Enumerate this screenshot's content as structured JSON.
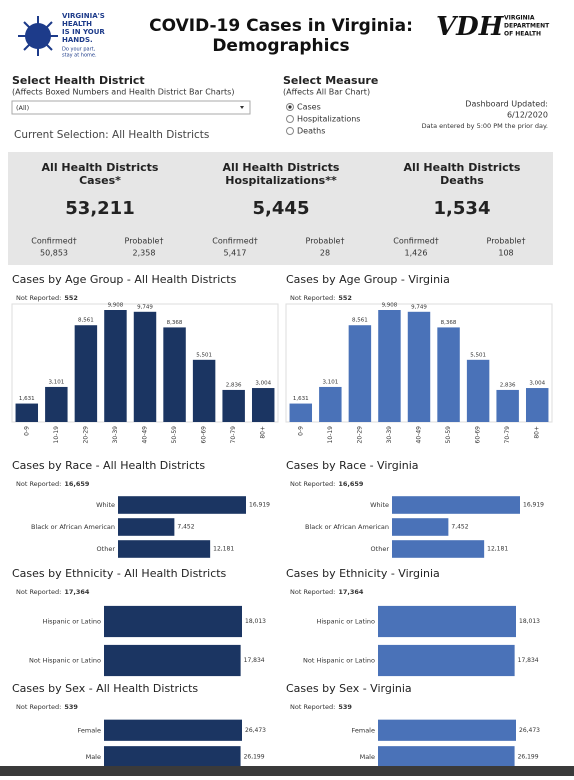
{
  "header": {
    "logo_lines": [
      "VIRGINIA'S",
      "HEALTH",
      "IS IN YOUR",
      "HANDS."
    ],
    "logo_tagline": [
      "Do your part,",
      "stay at home."
    ],
    "title_lines": [
      "COVID-19 Cases in Virginia:",
      "Demographics"
    ],
    "vdh_mark": "VDH",
    "vdh_name": [
      "VIRGINIA",
      "DEPARTMENT",
      "OF HEALTH"
    ]
  },
  "filters": {
    "district_label": "Select Health District",
    "district_note": "(Affects Boxed Numbers and Health District Bar Charts)",
    "district_value": "(All)",
    "current_selection": "Current Selection: All Health Districts",
    "measure_label": "Select Measure",
    "measure_note": "(Affects All Bar Chart)",
    "measure_options": [
      "Cases",
      "Hospitalizations",
      "Deaths"
    ],
    "updated_label": "Dashboard Updated:",
    "updated_date": "6/12/2020",
    "updated_note": "Data entered by 5:00 PM the prior day."
  },
  "summary": [
    {
      "title_lines": [
        "All Health Districts",
        "Cases*"
      ],
      "total": "53,211",
      "confirmed_label": "Confirmed†",
      "confirmed": "50,853",
      "probable_label": "Probable†",
      "probable": "2,358"
    },
    {
      "title_lines": [
        "All Health Districts",
        "Hospitalizations**"
      ],
      "total": "5,445",
      "confirmed_label": "Confirmed†",
      "confirmed": "5,417",
      "probable_label": "Probable†",
      "probable": "28"
    },
    {
      "title_lines": [
        "All Health Districts",
        "Deaths"
      ],
      "total": "1,534",
      "confirmed_label": "Confirmed†",
      "confirmed": "1,426",
      "probable_label": "Probable†",
      "probable": "108"
    }
  ],
  "chart_data": [
    {
      "type": "bar",
      "orientation": "vertical",
      "title": "Cases by Age Group - All Health Districts",
      "note_label": "Not Reported:",
      "note_value": "552",
      "color": "#1b3562",
      "categories": [
        "0-9",
        "10-19",
        "20-29",
        "30-39",
        "40-49",
        "50-59",
        "60-69",
        "70-79",
        "80+"
      ],
      "values": [
        1631,
        3101,
        8561,
        9908,
        9749,
        8368,
        5501,
        2836,
        3004
      ],
      "value_labels": [
        "1,631",
        "3,101",
        "8,561",
        "9,908",
        "9,749",
        "8,368",
        "5,501",
        "2,836",
        "3,004"
      ]
    },
    {
      "type": "bar",
      "orientation": "vertical",
      "title": "Cases by Age Group - Virginia",
      "note_label": "Not Reported:",
      "note_value": "552",
      "color": "#4a72b8",
      "categories": [
        "0-9",
        "10-19",
        "20-29",
        "30-39",
        "40-49",
        "50-59",
        "60-69",
        "70-79",
        "80+"
      ],
      "values": [
        1631,
        3101,
        8561,
        9908,
        9749,
        8368,
        5501,
        2836,
        3004
      ],
      "value_labels": [
        "1,631",
        "3,101",
        "8,561",
        "9,908",
        "9,749",
        "8,368",
        "5,501",
        "2,836",
        "3,004"
      ]
    },
    {
      "type": "bar",
      "orientation": "horizontal",
      "title": "Cases by Race - All Health Districts",
      "note_label": "Not Reported:",
      "note_value": "16,659",
      "color": "#1b3562",
      "categories": [
        "White",
        "Black or African American",
        "Other"
      ],
      "values": [
        16919,
        7452,
        12181
      ],
      "value_labels": [
        "16,919",
        "7,452",
        "12,181"
      ]
    },
    {
      "type": "bar",
      "orientation": "horizontal",
      "title": "Cases by Race - Virginia",
      "note_label": "Not Reported:",
      "note_value": "16,659",
      "color": "#4a72b8",
      "categories": [
        "White",
        "Black or African American",
        "Other"
      ],
      "values": [
        16919,
        7452,
        12181
      ],
      "value_labels": [
        "16,919",
        "7,452",
        "12,181"
      ]
    },
    {
      "type": "bar",
      "orientation": "horizontal",
      "title": "Cases by Ethnicity - All Health Districts",
      "note_label": "Not Reported:",
      "note_value": "17,364",
      "color": "#1b3562",
      "categories": [
        "Hispanic or Latino",
        "Not Hispanic or Latino"
      ],
      "values": [
        18013,
        17834
      ],
      "value_labels": [
        "18,013",
        "17,834"
      ]
    },
    {
      "type": "bar",
      "orientation": "horizontal",
      "title": "Cases by Ethnicity - Virginia",
      "note_label": "Not Reported:",
      "note_value": "17,364",
      "color": "#4a72b8",
      "categories": [
        "Hispanic or Latino",
        "Not Hispanic or Latino"
      ],
      "values": [
        18013,
        17834
      ],
      "value_labels": [
        "18,013",
        "17,834"
      ]
    },
    {
      "type": "bar",
      "orientation": "horizontal",
      "title": "Cases by Sex - All Health Districts",
      "note_label": "Not Reported:",
      "note_value": "539",
      "color": "#1b3562",
      "categories": [
        "Female",
        "Male"
      ],
      "values": [
        26473,
        26199
      ],
      "value_labels": [
        "26,473",
        "26,199"
      ]
    },
    {
      "type": "bar",
      "orientation": "horizontal",
      "title": "Cases by Sex - Virginia",
      "note_label": "Not Reported:",
      "note_value": "539",
      "color": "#4a72b8",
      "categories": [
        "Female",
        "Male"
      ],
      "values": [
        26473,
        26199
      ],
      "value_labels": [
        "26,473",
        "26,199"
      ]
    }
  ]
}
